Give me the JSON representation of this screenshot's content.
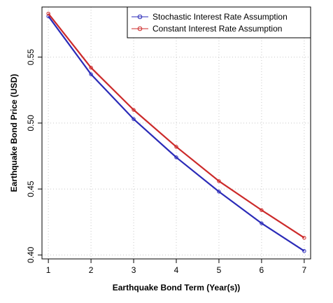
{
  "chart_data": {
    "type": "line",
    "title": "",
    "xlabel": "Earthquake Bond Term (Year(s))",
    "ylabel": "Earthquake Bond Price (USD)",
    "x": [
      1,
      2,
      3,
      4,
      5,
      6,
      7
    ],
    "xlim": [
      0.85,
      7.15
    ],
    "ylim": [
      0.397,
      0.588
    ],
    "xticks": [
      1,
      2,
      3,
      4,
      5,
      6,
      7
    ],
    "yticks": [
      0.4,
      0.45,
      0.5,
      0.55
    ],
    "ytick_labels": [
      "0.40",
      "0.45",
      "0.50",
      "0.55"
    ],
    "grid": true,
    "legend_position": "top-right",
    "series": [
      {
        "name": "Stochastic Interest Rate Assumption",
        "color": "#2b2bb8",
        "values": [
          0.581,
          0.537,
          0.503,
          0.474,
          0.448,
          0.424,
          0.403
        ]
      },
      {
        "name": "Constant Interest Rate Assumption",
        "color": "#cc2a2a",
        "values": [
          0.583,
          0.542,
          0.51,
          0.482,
          0.456,
          0.434,
          0.413
        ]
      }
    ]
  }
}
